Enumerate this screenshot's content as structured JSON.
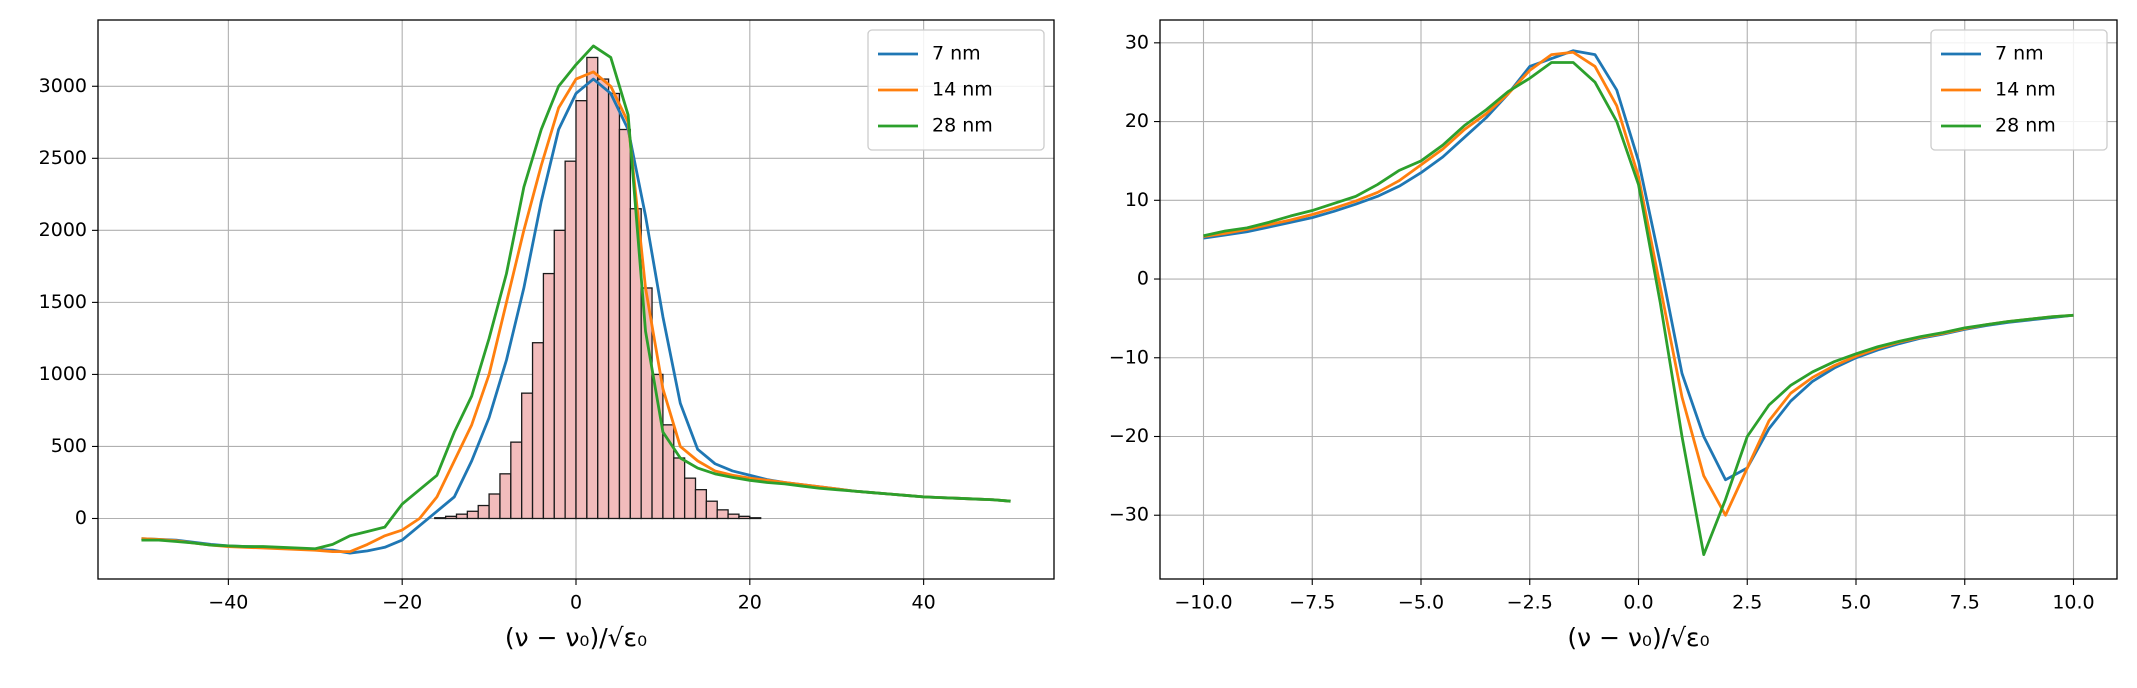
{
  "chart_data": [
    {
      "type": "line",
      "xlabel": "(ν − ν₀)/√ε₀",
      "xlim": [
        -55,
        55
      ],
      "ylim": [
        -420,
        3460
      ],
      "xticks": [
        {
          "value": -40,
          "label": "−40"
        },
        {
          "value": -20,
          "label": "−20"
        },
        0,
        20,
        40
      ],
      "yticks": [
        0,
        500,
        1000,
        1500,
        2000,
        2500,
        3000
      ],
      "grid": true,
      "legend": "upper right",
      "x": [
        -50,
        -48,
        -46,
        -44,
        -42,
        -40,
        -38,
        -36,
        -34,
        -32,
        -30,
        -28,
        -26,
        -24,
        -22,
        -20,
        -18,
        -16,
        -14,
        -12,
        -10,
        -8,
        -6,
        -4,
        -2,
        0,
        2,
        4,
        6,
        8,
        10,
        12,
        14,
        16,
        18,
        20,
        22,
        24,
        26,
        28,
        30,
        32,
        34,
        36,
        38,
        40,
        42,
        44,
        46,
        48,
        50
      ],
      "series": [
        {
          "name": "7 nm",
          "color": "#1f77b4",
          "values": [
            -140,
            -145,
            -150,
            -165,
            -180,
            -190,
            -195,
            -200,
            -205,
            -210,
            -215,
            -220,
            -240,
            -225,
            -200,
            -150,
            -50,
            50,
            150,
            400,
            700,
            1100,
            1600,
            2200,
            2700,
            2950,
            3050,
            2950,
            2700,
            2100,
            1400,
            800,
            480,
            380,
            330,
            300,
            270,
            250,
            235,
            220,
            205,
            190,
            180,
            170,
            160,
            150,
            145,
            140,
            135,
            130,
            120
          ]
        },
        {
          "name": "14 nm",
          "color": "#ff7f0e",
          "values": [
            -140,
            -145,
            -155,
            -170,
            -185,
            -195,
            -200,
            -205,
            -210,
            -215,
            -220,
            -230,
            -230,
            -180,
            -120,
            -80,
            0,
            150,
            400,
            650,
            1000,
            1500,
            2000,
            2450,
            2850,
            3050,
            3100,
            3000,
            2750,
            1600,
            900,
            500,
            400,
            330,
            300,
            280,
            265,
            250,
            235,
            220,
            205,
            190,
            180,
            170,
            160,
            150,
            145,
            140,
            135,
            130,
            120
          ]
        },
        {
          "name": "28 nm",
          "color": "#2ca02c",
          "values": [
            -150,
            -150,
            -160,
            -170,
            -185,
            -190,
            -195,
            -195,
            -200,
            -205,
            -210,
            -180,
            -120,
            -90,
            -60,
            100,
            200,
            300,
            600,
            850,
            1250,
            1700,
            2300,
            2700,
            3000,
            3150,
            3280,
            3200,
            2800,
            1300,
            600,
            420,
            350,
            310,
            285,
            265,
            250,
            240,
            225,
            210,
            200,
            190,
            180,
            170,
            160,
            150,
            145,
            140,
            135,
            130,
            120
          ]
        }
      ],
      "histogram": {
        "color": "#f2bcbc",
        "edgecolor": "#1a1a1a",
        "bins": [
          -16.25,
          -15,
          -13.75,
          -12.5,
          -11.25,
          -10,
          -8.75,
          -7.5,
          -6.25,
          -5,
          -3.75,
          -2.5,
          -1.25,
          0,
          1.25,
          2.5,
          3.75,
          5,
          6.25,
          7.5,
          8.75,
          10,
          11.25,
          12.5,
          13.75,
          15,
          16.25,
          17.5,
          18.75,
          20,
          21.25
        ],
        "counts": [
          5,
          15,
          30,
          50,
          90,
          170,
          310,
          530,
          870,
          1220,
          1700,
          2000,
          2480,
          2900,
          3200,
          3050,
          2950,
          2700,
          2150,
          1600,
          1000,
          650,
          420,
          280,
          200,
          120,
          60,
          30,
          15,
          5
        ]
      }
    },
    {
      "type": "line",
      "xlabel": "(ν − ν₀)/√ε₀",
      "xlim": [
        -11,
        11
      ],
      "ylim": [
        -38.1,
        32.9
      ],
      "xticks": [
        {
          "value": -10,
          "label": "−10.0"
        },
        {
          "value": -7.5,
          "label": "−7.5"
        },
        {
          "value": -5,
          "label": "−5.0"
        },
        {
          "value": -2.5,
          "label": "−2.5"
        },
        {
          "value": 0,
          "label": "0.0"
        },
        2.5,
        {
          "value": 5,
          "label": "5.0"
        },
        7.5,
        {
          "value": 10,
          "label": "10.0"
        }
      ],
      "yticks": [
        {
          "value": -30,
          "label": "−30"
        },
        {
          "value": -20,
          "label": "−20"
        },
        {
          "value": -10,
          "label": "−10"
        },
        0,
        10,
        20,
        30
      ],
      "grid": true,
      "legend": "upper right",
      "x": [
        -10,
        -9.5,
        -9,
        -8.5,
        -8,
        -7.5,
        -7,
        -6.5,
        -6,
        -5.5,
        -5,
        -4.5,
        -4,
        -3.5,
        -3,
        -2.5,
        -2,
        -1.5,
        -1,
        -0.5,
        0,
        0.5,
        1,
        1.5,
        2,
        2.5,
        3,
        3.5,
        4,
        4.5,
        5,
        5.5,
        6,
        6.5,
        7,
        7.5,
        8,
        8.5,
        9,
        9.5,
        10
      ],
      "series": [
        {
          "name": "7 nm",
          "color": "#1f77b4",
          "values": [
            5.2,
            5.6,
            6,
            6.6,
            7.2,
            7.8,
            8.6,
            9.5,
            10.5,
            11.8,
            13.5,
            15.5,
            18,
            20.5,
            23.5,
            27,
            28,
            29,
            28.5,
            24,
            15,
            2,
            -12,
            -20,
            -25.5,
            -24,
            -19,
            -15.5,
            -13,
            -11.3,
            -10,
            -9,
            -8.2,
            -7.5,
            -7,
            -6.4,
            -5.9,
            -5.5,
            -5.2,
            -4.9,
            -4.6
          ]
        },
        {
          "name": "14 nm",
          "color": "#ff7f0e",
          "values": [
            5.4,
            5.8,
            6.3,
            6.9,
            7.5,
            8.2,
            9,
            9.9,
            11,
            12.5,
            14.5,
            16.5,
            19,
            21,
            23.5,
            26.5,
            28.5,
            28.8,
            27,
            22,
            13,
            -1,
            -15,
            -25,
            -30,
            -24,
            -18,
            -14.5,
            -12.5,
            -11,
            -9.8,
            -8.8,
            -8,
            -7.4,
            -6.9,
            -6.3,
            -5.8,
            -5.4,
            -5.1,
            -4.8,
            -4.6
          ]
        },
        {
          "name": "28 nm",
          "color": "#2ca02c",
          "values": [
            5.5,
            6.1,
            6.5,
            7.2,
            8,
            8.7,
            9.6,
            10.5,
            12,
            13.8,
            15,
            17,
            19.5,
            21.5,
            23.8,
            25.5,
            27.5,
            27.5,
            25,
            20,
            12,
            -3,
            -20,
            -35,
            -28,
            -20,
            -16,
            -13.5,
            -11.8,
            -10.5,
            -9.5,
            -8.6,
            -7.9,
            -7.3,
            -6.8,
            -6.2,
            -5.8,
            -5.4,
            -5.1,
            -4.8,
            -4.6
          ]
        }
      ]
    }
  ]
}
